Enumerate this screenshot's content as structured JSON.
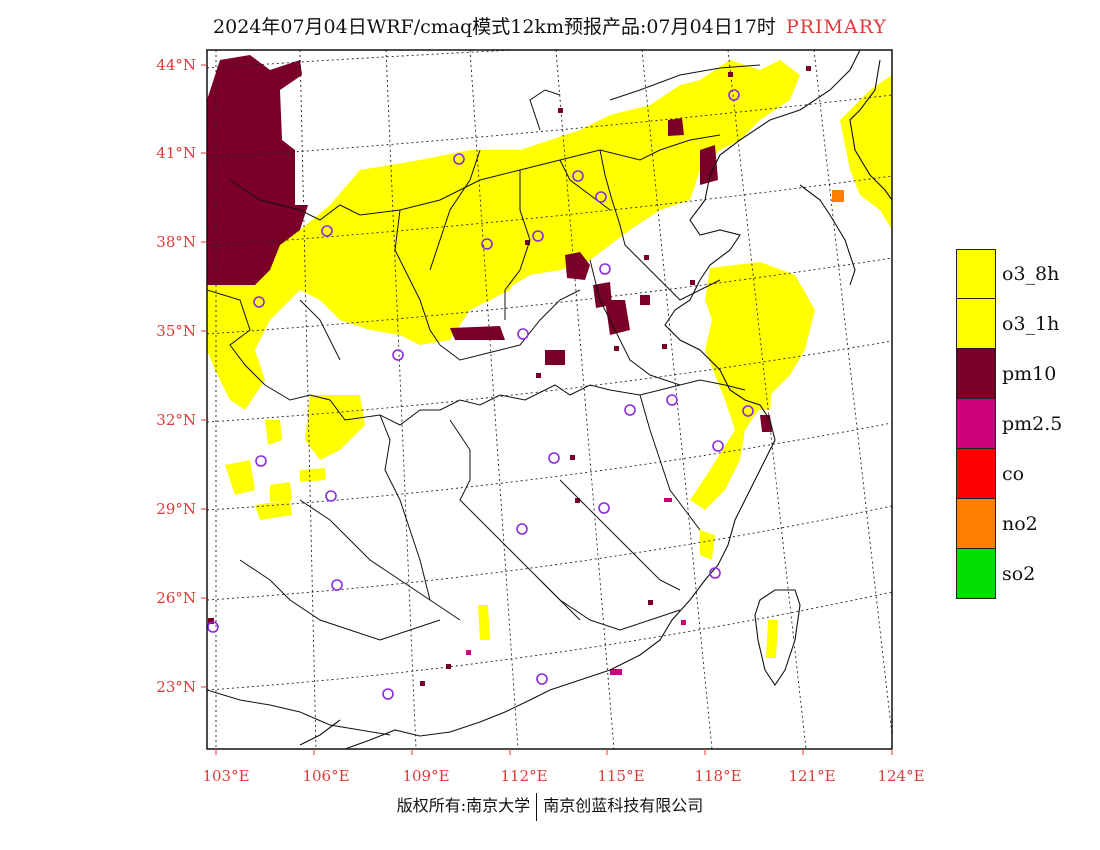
{
  "header": {
    "title": "2024年07月04日WRF/cmaq模式12km预报产品:07月04日17时",
    "tag": "PRIMARY"
  },
  "map": {
    "lat_labels": [
      "44°N",
      "41°N",
      "38°N",
      "35°N",
      "32°N",
      "29°N",
      "26°N",
      "23°N"
    ],
    "lon_labels": [
      "103°E",
      "106°E",
      "109°E",
      "112°E",
      "115°E",
      "118°E",
      "121°E",
      "124°E"
    ],
    "axis_label_color": "#e03a3a"
  },
  "legend": {
    "items": [
      {
        "label": "o3_8h",
        "color": "#ffff00"
      },
      {
        "label": "o3_1h",
        "color": "#ffff00"
      },
      {
        "label": "pm10",
        "color": "#7b0028"
      },
      {
        "label": "pm2.5",
        "color": "#cc0077"
      },
      {
        "label": "co",
        "color": "#ff0000"
      },
      {
        "label": "no2",
        "color": "#ff7f00"
      },
      {
        "label": "so2",
        "color": "#00dd00"
      }
    ]
  },
  "footer": {
    "left": "版权所有:南京大学",
    "right": "南京创蓝科技有限公司"
  }
}
